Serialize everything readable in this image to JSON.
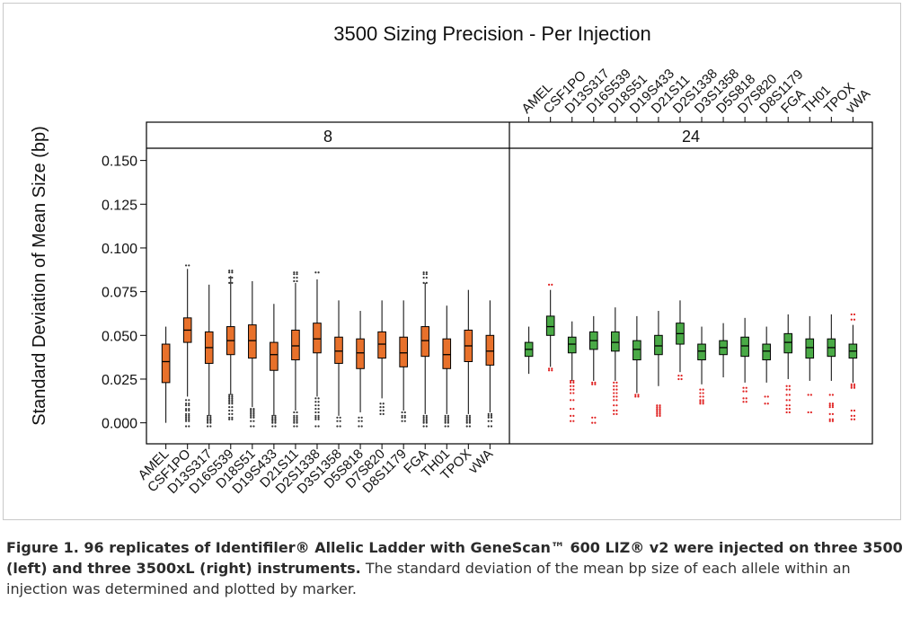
{
  "chart_data": {
    "type": "box",
    "title": "3500 Sizing Precision - Per Injection",
    "ylabel": "Standard Deviation of Mean Size (bp)",
    "xlabel": "",
    "ylim": [
      -0.012,
      0.157
    ],
    "yticks": [
      "0.000",
      "0.025",
      "0.050",
      "0.075",
      "0.100",
      "0.125",
      "0.150"
    ],
    "categories": [
      "AMEL",
      "CSF1PO",
      "D13S317",
      "D16S539",
      "D18S51",
      "D19S433",
      "D21S11",
      "D2S1338",
      "D3S1358",
      "D5S818",
      "D7S820",
      "D8S1179",
      "FGA",
      "TH01",
      "TPOX",
      "vWA"
    ],
    "panels": [
      {
        "label": "8",
        "color": "#e8712b",
        "outlier_color": "#333333",
        "boxes": [
          {
            "min": 0.0,
            "q1": 0.023,
            "median": 0.035,
            "q3": 0.045,
            "max": 0.055,
            "outliers": []
          },
          {
            "min": 0.015,
            "q1": 0.046,
            "median": 0.053,
            "q3": 0.06,
            "max": 0.088,
            "outliers": [
              0.09,
              0.013,
              0.011,
              0.01,
              0.008,
              0.007,
              0.005,
              0.004,
              0.003,
              0.002,
              0.001,
              -0.002
            ]
          },
          {
            "min": 0.004,
            "q1": 0.034,
            "median": 0.043,
            "q3": 0.052,
            "max": 0.079,
            "outliers": [
              0.004,
              0.003,
              0.002,
              0.002,
              0.001,
              0.0,
              -0.002
            ]
          },
          {
            "min": 0.016,
            "q1": 0.039,
            "median": 0.047,
            "q3": 0.055,
            "max": 0.084,
            "outliers": [
              0.087,
              0.086,
              0.083,
              0.08,
              0.016,
              0.015,
              0.014,
              0.013,
              0.012,
              0.011,
              0.009,
              0.007,
              0.005,
              0.003,
              0.002
            ]
          },
          {
            "min": 0.009,
            "q1": 0.037,
            "median": 0.047,
            "q3": 0.056,
            "max": 0.081,
            "outliers": [
              0.008,
              0.007,
              0.006,
              0.005,
              0.004,
              0.003,
              0.001,
              -0.002
            ]
          },
          {
            "min": 0.004,
            "q1": 0.03,
            "median": 0.039,
            "q3": 0.046,
            "max": 0.068,
            "outliers": [
              0.004,
              0.003,
              0.002,
              0.002,
              0.001,
              0.0,
              -0.002
            ]
          },
          {
            "min": 0.007,
            "q1": 0.036,
            "median": 0.044,
            "q3": 0.053,
            "max": 0.08,
            "outliers": [
              0.086,
              0.085,
              0.083,
              0.081,
              0.006,
              0.004,
              0.003,
              0.002,
              0.001,
              0.0,
              -0.002
            ]
          },
          {
            "min": 0.015,
            "q1": 0.04,
            "median": 0.048,
            "q3": 0.057,
            "max": 0.082,
            "outliers": [
              0.086,
              0.014,
              0.012,
              0.01,
              0.008,
              0.006,
              0.004,
              0.003,
              0.002,
              -0.002
            ]
          },
          {
            "min": 0.004,
            "q1": 0.034,
            "median": 0.041,
            "q3": 0.049,
            "max": 0.07,
            "outliers": [
              0.003,
              0.001,
              -0.002
            ]
          },
          {
            "min": 0.006,
            "q1": 0.031,
            "median": 0.04,
            "q3": 0.048,
            "max": 0.064,
            "outliers": [
              0.003,
              0.001,
              -0.002
            ]
          },
          {
            "min": 0.014,
            "q1": 0.037,
            "median": 0.045,
            "q3": 0.052,
            "max": 0.07,
            "outliers": [
              0.011,
              0.009,
              0.007,
              0.005
            ]
          },
          {
            "min": 0.007,
            "q1": 0.032,
            "median": 0.04,
            "q3": 0.049,
            "max": 0.07,
            "outliers": [
              0.006,
              0.004,
              0.003,
              0.001
            ]
          },
          {
            "min": 0.005,
            "q1": 0.038,
            "median": 0.047,
            "q3": 0.055,
            "max": 0.08,
            "outliers": [
              0.086,
              0.085,
              0.083,
              0.08,
              0.004,
              0.003,
              0.002,
              0.001,
              0.0,
              -0.002
            ]
          },
          {
            "min": 0.005,
            "q1": 0.031,
            "median": 0.039,
            "q3": 0.048,
            "max": 0.067,
            "outliers": [
              0.004,
              0.003,
              0.002,
              0.001,
              0.0,
              -0.002
            ]
          },
          {
            "min": 0.005,
            "q1": 0.035,
            "median": 0.044,
            "q3": 0.053,
            "max": 0.076,
            "outliers": [
              0.004,
              0.003,
              0.002,
              0.001,
              0.0,
              -0.002
            ]
          },
          {
            "min": 0.006,
            "q1": 0.033,
            "median": 0.041,
            "q3": 0.05,
            "max": 0.07,
            "outliers": [
              0.005,
              0.004,
              0.003,
              0.001,
              -0.002
            ]
          }
        ]
      },
      {
        "label": "24",
        "color": "#4aaa46",
        "outlier_color": "#e02020",
        "boxes": [
          {
            "min": 0.028,
            "q1": 0.038,
            "median": 0.042,
            "q3": 0.046,
            "max": 0.055,
            "outliers": []
          },
          {
            "min": 0.032,
            "q1": 0.05,
            "median": 0.055,
            "q3": 0.061,
            "max": 0.076,
            "outliers": [
              0.079,
              0.031,
              0.03
            ]
          },
          {
            "min": 0.024,
            "q1": 0.04,
            "median": 0.045,
            "q3": 0.049,
            "max": 0.058,
            "outliers": [
              0.024,
              0.023,
              0.021,
              0.019,
              0.017,
              0.013,
              0.008,
              0.004,
              0.001
            ]
          },
          {
            "min": 0.024,
            "q1": 0.042,
            "median": 0.047,
            "q3": 0.052,
            "max": 0.061,
            "outliers": [
              0.023,
              0.022,
              0.003,
              0.0
            ]
          },
          {
            "min": 0.024,
            "q1": 0.041,
            "median": 0.046,
            "q3": 0.052,
            "max": 0.066,
            "outliers": [
              0.023,
              0.021,
              0.019,
              0.017,
              0.015,
              0.013,
              0.01,
              0.007,
              0.005
            ]
          },
          {
            "min": 0.017,
            "q1": 0.036,
            "median": 0.042,
            "q3": 0.047,
            "max": 0.061,
            "outliers": [
              0.016,
              0.015
            ]
          },
          {
            "min": 0.021,
            "q1": 0.039,
            "median": 0.044,
            "q3": 0.05,
            "max": 0.064,
            "outliers": [
              0.01,
              0.009,
              0.008,
              0.007,
              0.006,
              0.005,
              0.004
            ]
          },
          {
            "min": 0.029,
            "q1": 0.045,
            "median": 0.051,
            "q3": 0.057,
            "max": 0.07,
            "outliers": [
              0.027,
              0.025
            ]
          },
          {
            "min": 0.022,
            "q1": 0.036,
            "median": 0.041,
            "q3": 0.045,
            "max": 0.055,
            "outliers": [
              0.019,
              0.017,
              0.015,
              0.013,
              0.012,
              0.011
            ]
          },
          {
            "min": 0.026,
            "q1": 0.039,
            "median": 0.043,
            "q3": 0.047,
            "max": 0.057,
            "outliers": []
          },
          {
            "min": 0.023,
            "q1": 0.038,
            "median": 0.044,
            "q3": 0.049,
            "max": 0.06,
            "outliers": [
              0.02,
              0.018,
              0.014,
              0.012
            ]
          },
          {
            "min": 0.023,
            "q1": 0.036,
            "median": 0.041,
            "q3": 0.045,
            "max": 0.055,
            "outliers": [
              0.015,
              0.011
            ]
          },
          {
            "min": 0.025,
            "q1": 0.04,
            "median": 0.046,
            "q3": 0.051,
            "max": 0.062,
            "outliers": [
              0.021,
              0.019,
              0.016,
              0.013,
              0.01,
              0.008,
              0.006
            ]
          },
          {
            "min": 0.024,
            "q1": 0.037,
            "median": 0.043,
            "q3": 0.048,
            "max": 0.061,
            "outliers": [
              0.016,
              0.006
            ]
          },
          {
            "min": 0.024,
            "q1": 0.038,
            "median": 0.043,
            "q3": 0.048,
            "max": 0.062,
            "outliers": [
              0.016,
              0.011,
              0.01,
              0.009,
              0.005,
              0.002,
              0.001
            ]
          },
          {
            "min": 0.023,
            "q1": 0.037,
            "median": 0.041,
            "q3": 0.045,
            "max": 0.056,
            "outliers": [
              0.062,
              0.059,
              0.022,
              0.021,
              0.02,
              0.007,
              0.004,
              0.002
            ]
          }
        ]
      }
    ]
  },
  "caption": {
    "bold": "Figure 1. 96 replicates of Identifiler® Allelic Ladder with GeneScan™ 600 LIZ® v2 were injected on three 3500 (left) and three 3500xL (right) instruments.",
    "text": " The standard deviation of the mean bp size of each allele within an injection was determined and plotted by marker."
  }
}
